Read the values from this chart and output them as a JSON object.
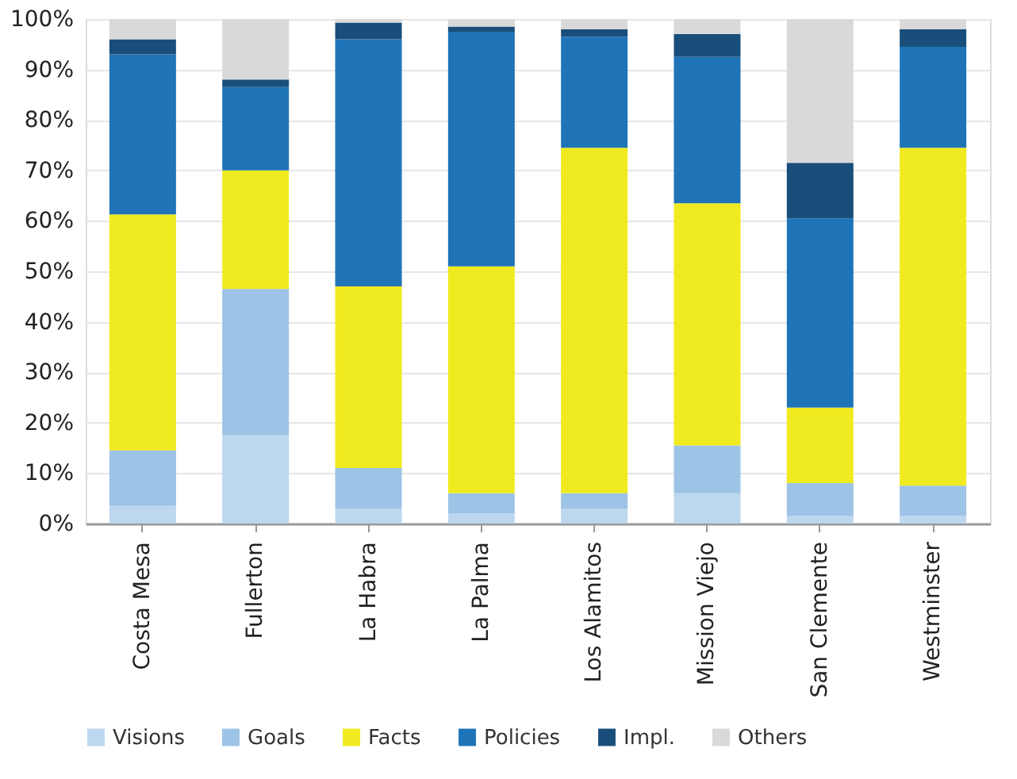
{
  "chart_data": {
    "type": "bar",
    "stacked": true,
    "categories": [
      "Costa Mesa",
      "Fullerton",
      "La Habra",
      "La Palma",
      "Los Alamitos",
      "Mission Viejo",
      "San Clemente",
      "Westminster"
    ],
    "series": [
      {
        "name": "Visions",
        "color": "#bdd7ee",
        "values": [
          3.5,
          17.5,
          3,
          2,
          3,
          6,
          1.5,
          1.5
        ]
      },
      {
        "name": "Goals",
        "color": "#9dc3e6",
        "values": [
          11,
          29,
          8,
          4,
          3,
          9.5,
          6.5,
          6
        ]
      },
      {
        "name": "Facts",
        "color": "#f0ea20",
        "values": [
          46.8,
          23.5,
          36,
          45,
          68.5,
          48,
          15,
          67
        ]
      },
      {
        "name": "Policies",
        "color": "#1f74b8",
        "values": [
          31.7,
          16.5,
          49,
          46.5,
          22,
          29,
          37.5,
          20
        ]
      },
      {
        "name": "Impl.",
        "color": "#1a4e7a",
        "values": [
          3,
          1.5,
          3.3,
          1,
          1.5,
          4.5,
          11,
          3.5
        ]
      },
      {
        "name": "Others",
        "color": "#d9d9d9",
        "values": [
          4,
          12,
          0.7,
          1.5,
          2,
          3,
          28.5,
          2
        ]
      }
    ],
    "ylim": [
      0,
      100
    ],
    "yticks": [
      {
        "value": 0,
        "label": "0%"
      },
      {
        "value": 10,
        "label": "10%"
      },
      {
        "value": 20,
        "label": "20%"
      },
      {
        "value": 30,
        "label": "30%"
      },
      {
        "value": 40,
        "label": "40%"
      },
      {
        "value": 50,
        "label": "50%"
      },
      {
        "value": 60,
        "label": "60%"
      },
      {
        "value": 70,
        "label": "70%"
      },
      {
        "value": 80,
        "label": "80%"
      },
      {
        "value": 90,
        "label": "90%"
      },
      {
        "value": 100,
        "label": "100%"
      }
    ],
    "grid": "y",
    "legend": "bottom"
  }
}
